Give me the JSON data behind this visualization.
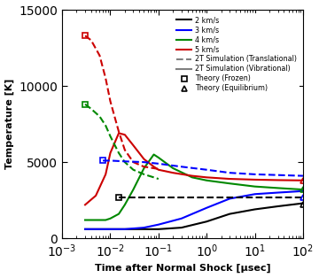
{
  "xlabel": "Time after Normal Shock [μsec]",
  "ylabel": "Temperature [K]",
  "ylim": [
    0,
    15000
  ],
  "yticks": [
    0,
    5000,
    10000,
    15000
  ],
  "colors": {
    "2km": "#000000",
    "3km": "#0000ff",
    "4km": "#008800",
    "5km": "#cc0000"
  },
  "legend_labels": [
    "2 km/s",
    "3 km/s",
    "4 km/s",
    "5 km/s",
    "2T Simulation (Translational)",
    "2T Simulation (Vibrational)",
    "Theory (Frozen)",
    "Theory (Equilibrium)"
  ],
  "curve_2km": {
    "x": [
      0.003,
      0.005,
      0.008,
      0.01,
      0.02,
      0.05,
      0.1,
      0.3,
      1.0,
      3.0,
      10.0,
      30.0,
      100.0
    ],
    "y": [
      600,
      600,
      600,
      600,
      600,
      600,
      600,
      700,
      1100,
      1600,
      1900,
      2100,
      2300
    ]
  },
  "curve_3km": {
    "x": [
      0.003,
      0.005,
      0.008,
      0.01,
      0.02,
      0.05,
      0.1,
      0.3,
      1.0,
      3.0,
      10.0,
      30.0,
      100.0
    ],
    "y": [
      600,
      600,
      600,
      600,
      600,
      700,
      900,
      1300,
      2000,
      2600,
      2900,
      3000,
      3100
    ]
  },
  "curve_4km": {
    "x": [
      0.003,
      0.005,
      0.008,
      0.01,
      0.015,
      0.02,
      0.03,
      0.05,
      0.08,
      0.1,
      0.2,
      0.5,
      1.0,
      3.0,
      10.0,
      30.0,
      100.0
    ],
    "y": [
      1200,
      1200,
      1200,
      1300,
      1600,
      2200,
      3200,
      4600,
      5500,
      5300,
      4600,
      4000,
      3800,
      3600,
      3400,
      3300,
      3200
    ]
  },
  "curve_5km": {
    "x": [
      0.003,
      0.005,
      0.008,
      0.01,
      0.015,
      0.02,
      0.03,
      0.05,
      0.08,
      0.1,
      0.2,
      0.5,
      1.0,
      3.0,
      10.0,
      30.0,
      100.0
    ],
    "y": [
      2200,
      2800,
      4200,
      5600,
      6900,
      6800,
      6100,
      5200,
      4700,
      4500,
      4300,
      4100,
      4000,
      3900,
      3850,
      3820,
      3800
    ]
  },
  "dash_5km": {
    "x": [
      0.003,
      0.004,
      0.006,
      0.008,
      0.01,
      0.015,
      0.02,
      0.03,
      0.05,
      0.08,
      0.1
    ],
    "y": [
      13300,
      13000,
      12000,
      10500,
      9000,
      7000,
      5800,
      5000,
      4700,
      4600,
      4550
    ]
  },
  "dash_4km": {
    "x": [
      0.003,
      0.004,
      0.006,
      0.008,
      0.01,
      0.015,
      0.02,
      0.03,
      0.05,
      0.08,
      0.1
    ],
    "y": [
      8800,
      8500,
      8000,
      7400,
      6700,
      5600,
      5000,
      4500,
      4200,
      4000,
      3900
    ]
  },
  "dash_3km": {
    "x": [
      0.007,
      0.01,
      0.02,
      0.05,
      0.1,
      0.3,
      1.0,
      3.0,
      10.0,
      100.0
    ],
    "y": [
      5100,
      5100,
      5050,
      5000,
      4900,
      4700,
      4500,
      4300,
      4200,
      4100
    ]
  },
  "dash_black": {
    "x": [
      0.015,
      0.03,
      0.1,
      1.0,
      10.0,
      100.0
    ],
    "y": [
      2700,
      2700,
      2700,
      2700,
      2700,
      2700
    ]
  },
  "frozen_squares": {
    "x": [
      0.003,
      0.003,
      0.007,
      0.015
    ],
    "y": [
      13300,
      8800,
      5100,
      2700
    ],
    "colors": [
      "#cc0000",
      "#008800",
      "#0000ff",
      "#000000"
    ]
  },
  "equilibrium_triangles": {
    "x": [
      100.0,
      100.0,
      100.0,
      100.0
    ],
    "y": [
      3800,
      3200,
      2700,
      2200
    ],
    "colors": [
      "#cc0000",
      "#008800",
      "#0000ff",
      "#000000"
    ]
  }
}
